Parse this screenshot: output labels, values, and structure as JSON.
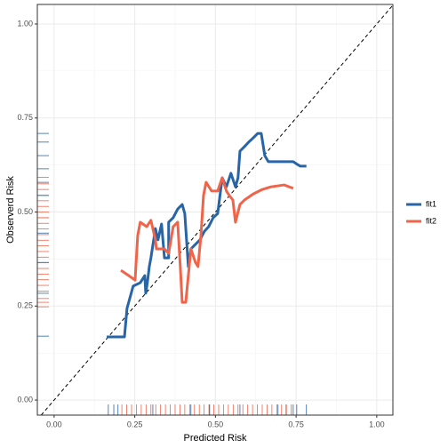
{
  "chart_data": {
    "type": "line",
    "x_label": "Predicted Risk",
    "y_label": "Observerd Risk",
    "xlim": [
      -0.052,
      1.05
    ],
    "ylim": [
      -0.04,
      1.052
    ],
    "xticks": [
      {
        "value": 0,
        "label": "0.00"
      },
      {
        "value": 0.25,
        "label": "0.25"
      },
      {
        "value": 0.5,
        "label": "0.50"
      },
      {
        "value": 0.75,
        "label": "0.75"
      },
      {
        "value": 1,
        "label": "1.00"
      }
    ],
    "yticks": [
      {
        "value": 0,
        "label": "0.00"
      },
      {
        "value": 0.25,
        "label": "0.25"
      },
      {
        "value": 0.5,
        "label": "0.50"
      },
      {
        "value": 0.75,
        "label": "0.75"
      },
      {
        "value": 1,
        "label": "1.00"
      }
    ],
    "grid": true,
    "series": [
      {
        "name": "fit1",
        "color": "#2765a6",
        "x": [
          0.163,
          0.218,
          0.226,
          0.245,
          0.267,
          0.281,
          0.284,
          0.289,
          0.295,
          0.3,
          0.314,
          0.322,
          0.328,
          0.333,
          0.342,
          0.355,
          0.355,
          0.369,
          0.383,
          0.397,
          0.405,
          0.416,
          0.424,
          0.438,
          0.452,
          0.466,
          0.479,
          0.493,
          0.507,
          0.521,
          0.534,
          0.548,
          0.562,
          0.57,
          0.576,
          0.59,
          0.603,
          0.617,
          0.631,
          0.642,
          0.653,
          0.664,
          0.713,
          0.741,
          0.755,
          0.763,
          0.782
        ],
        "values": [
          0.168,
          0.168,
          0.244,
          0.303,
          0.312,
          0.331,
          0.284,
          0.312,
          0.355,
          0.378,
          0.456,
          0.426,
          0.449,
          0.468,
          0.378,
          0.378,
          0.473,
          0.485,
          0.508,
          0.52,
          0.496,
          0.355,
          0.402,
          0.414,
          0.426,
          0.449,
          0.461,
          0.485,
          0.496,
          0.591,
          0.567,
          0.603,
          0.567,
          0.591,
          0.662,
          0.674,
          0.686,
          0.697,
          0.709,
          0.709,
          0.65,
          0.634,
          0.634,
          0.634,
          0.626,
          0.622,
          0.622
        ],
        "rug_x": [
          0.168,
          0.185,
          0.198,
          0.306,
          0.424,
          0.482,
          0.576,
          0.694,
          0.719,
          0.741,
          0.752,
          0.782
        ],
        "rug_y": [
          0.709,
          0.686,
          0.65,
          0.615,
          0.579,
          0.544,
          0.485,
          0.444,
          0.366,
          0.284,
          0.17
        ]
      },
      {
        "name": "fit2",
        "color": "#f0644a",
        "x": [
          0.207,
          0.231,
          0.251,
          0.259,
          0.267,
          0.287,
          0.3,
          0.314,
          0.317,
          0.342,
          0.355,
          0.369,
          0.383,
          0.391,
          0.397,
          0.408,
          0.416,
          0.424,
          0.438,
          0.446,
          0.455,
          0.463,
          0.471,
          0.488,
          0.507,
          0.521,
          0.534,
          0.543,
          0.554,
          0.562,
          0.576,
          0.59,
          0.617,
          0.645,
          0.672,
          0.713,
          0.741
        ],
        "values": [
          0.345,
          0.331,
          0.319,
          0.437,
          0.473,
          0.461,
          0.478,
          0.426,
          0.402,
          0.402,
          0.39,
          0.461,
          0.473,
          0.355,
          0.26,
          0.26,
          0.331,
          0.402,
          0.366,
          0.355,
          0.437,
          0.544,
          0.579,
          0.556,
          0.556,
          0.591,
          0.556,
          0.544,
          0.532,
          0.473,
          0.52,
          0.532,
          0.548,
          0.56,
          0.567,
          0.572,
          0.563
        ],
        "rug_x": [
          0.21,
          0.225,
          0.24,
          0.255,
          0.27,
          0.285,
          0.3,
          0.315,
          0.33,
          0.345,
          0.36,
          0.375,
          0.39,
          0.405,
          0.42,
          0.435,
          0.45,
          0.465,
          0.48,
          0.495,
          0.51,
          0.525,
          0.54,
          0.555,
          0.57,
          0.585,
          0.6,
          0.615,
          0.63,
          0.645,
          0.66,
          0.675,
          0.69,
          0.705,
          0.72,
          0.735
        ],
        "rug_y": [
          0.592,
          0.575,
          0.56,
          0.545,
          0.53,
          0.515,
          0.5,
          0.485,
          0.47,
          0.455,
          0.44,
          0.425,
          0.41,
          0.395,
          0.38,
          0.365,
          0.35,
          0.335,
          0.32,
          0.305,
          0.29,
          0.27,
          0.26,
          0.248
        ]
      }
    ]
  }
}
